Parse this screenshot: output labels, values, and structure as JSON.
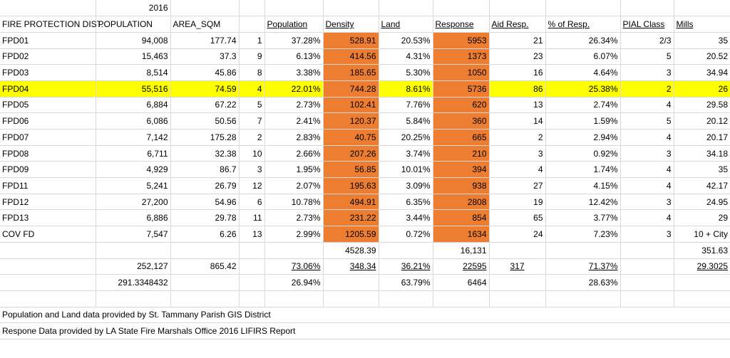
{
  "header": {
    "year": "2016",
    "district_col": "FIRE PROTECTION DIST.",
    "population_col": "POPULATION",
    "area_col": "AREA_SQM",
    "pct_population": "Population",
    "density": "Density",
    "land": "Land",
    "response": "Response",
    "aid_resp": "Aid Resp.",
    "pct_resp": "% of Resp.",
    "pial_class": "PIAL Class",
    "mills": "Mills"
  },
  "rows": [
    {
      "district": "FPD01",
      "population": "94,008",
      "area": "177.74",
      "rank": "1",
      "pct_pop": "37.28%",
      "density": "528.91",
      "land": "20.53%",
      "response": "5953",
      "aid": "21",
      "pct_resp": "26.34%",
      "pial": "2/3",
      "mills": "35"
    },
    {
      "district": "FPD02",
      "population": "15,463",
      "area": "37.3",
      "rank": "9",
      "pct_pop": "6.13%",
      "density": "414.56",
      "land": "4.31%",
      "response": "1373",
      "aid": "23",
      "pct_resp": "6.07%",
      "pial": "5",
      "mills": "20.52"
    },
    {
      "district": "FPD03",
      "population": "8,514",
      "area": "45.86",
      "rank": "8",
      "pct_pop": "3.38%",
      "density": "185.65",
      "land": "5.30%",
      "response": "1050",
      "aid": "16",
      "pct_resp": "4.64%",
      "pial": "3",
      "mills": "34.94"
    },
    {
      "district": "FPD04",
      "population": "55,516",
      "area": "74.59",
      "rank": "4",
      "pct_pop": "22.01%",
      "density": "744.28",
      "land": "8.61%",
      "response": "5736",
      "aid": "86",
      "pct_resp": "25.38%",
      "pial": "2",
      "mills": "26",
      "highlight": true
    },
    {
      "district": "FPD05",
      "population": "6,884",
      "area": "67.22",
      "rank": "5",
      "pct_pop": "2.73%",
      "density": "102.41",
      "land": "7.76%",
      "response": "620",
      "aid": "13",
      "pct_resp": "2.74%",
      "pial": "4",
      "mills": "29.58"
    },
    {
      "district": "FPD06",
      "population": "6,086",
      "area": "50.56",
      "rank": "7",
      "pct_pop": "2.41%",
      "density": "120.37",
      "land": "5.84%",
      "response": "360",
      "aid": "14",
      "pct_resp": "1.59%",
      "pial": "5",
      "mills": "20.12"
    },
    {
      "district": "FPD07",
      "population": "7,142",
      "area": "175.28",
      "rank": "2",
      "pct_pop": "2.83%",
      "density": "40.75",
      "land": "20.25%",
      "response": "665",
      "aid": "2",
      "pct_resp": "2.94%",
      "pial": "4",
      "mills": "20.17"
    },
    {
      "district": "FPD08",
      "population": "6,711",
      "area": "32.38",
      "rank": "10",
      "pct_pop": "2.66%",
      "density": "207.26",
      "land": "3.74%",
      "response": "210",
      "aid": "3",
      "pct_resp": "0.92%",
      "pial": "3",
      "mills": "34.18"
    },
    {
      "district": "FPD09",
      "population": "4,929",
      "area": "86.7",
      "rank": "3",
      "pct_pop": "1.95%",
      "density": "56.85",
      "land": "10.01%",
      "response": "394",
      "aid": "4",
      "pct_resp": "1.74%",
      "pial": "4",
      "mills": "35"
    },
    {
      "district": "FPD11",
      "population": "5,241",
      "area": "26.79",
      "rank": "12",
      "pct_pop": "2.07%",
      "density": "195.63",
      "land": "3.09%",
      "response": "938",
      "aid": "27",
      "pct_resp": "4.15%",
      "pial": "4",
      "mills": "42.17"
    },
    {
      "district": "FPD12",
      "population": "27,200",
      "area": "54.96",
      "rank": "6",
      "pct_pop": "10.78%",
      "density": "494.91",
      "land": "6.35%",
      "response": "2808",
      "aid": "19",
      "pct_resp": "12.42%",
      "pial": "3",
      "mills": "24.95"
    },
    {
      "district": "FPD13",
      "population": "6,886",
      "area": "29.78",
      "rank": "11",
      "pct_pop": "2.73%",
      "density": "231.22",
      "land": "3.44%",
      "response": "854",
      "aid": "65",
      "pct_resp": "3.77%",
      "pial": "4",
      "mills": "29"
    },
    {
      "district": "COV FD",
      "population": "7,547",
      "area": "6.26",
      "rank": "13",
      "pct_pop": "2.99%",
      "density": "1205.59",
      "land": "0.72%",
      "response": "1634",
      "aid": "24",
      "pct_resp": "7.23%",
      "pial": "3",
      "mills": "10 + City"
    }
  ],
  "subtotals": {
    "density_sum": "4528.39",
    "response_sum": "16,131",
    "mills_sum": "351.63"
  },
  "totals": {
    "population": "252,127",
    "area": "865.42",
    "pct_pop": "73.06%",
    "density": "348.34",
    "land": "36.21%",
    "response": "22595",
    "aid": "317",
    "pct_resp": "71.37%",
    "mills": "29.3025"
  },
  "other": {
    "population": "291.3348432",
    "pct_pop": "26.94%",
    "land": "63.79%",
    "response": "6464",
    "pct_resp": "28.63%"
  },
  "notes": {
    "line1": "Population and Land data provided by St. Tammany Parish GIS District",
    "line2": "Respone Data provided by LA State Fire Marshals Office 2016 LIFIRS Report"
  },
  "colors": {
    "highlight": "#ffff00",
    "density_response_fill": "#ed7d31",
    "gridline": "#d9d9d9"
  }
}
